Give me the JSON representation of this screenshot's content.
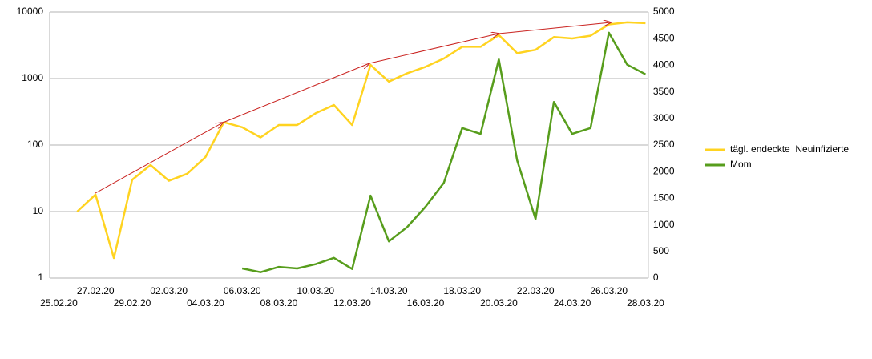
{
  "chart_data": {
    "type": "line",
    "categories": [
      "25.02.20",
      null,
      "27.02.20",
      null,
      "29.02.20",
      null,
      "02.03.20",
      null,
      "04.03.20",
      null,
      "06.03.20",
      null,
      "08.03.20",
      null,
      "10.03.20",
      null,
      "12.03.20",
      null,
      "14.03.20",
      null,
      "16.03.20",
      null,
      "18.03.20",
      null,
      "20.03.20",
      null,
      "22.03.20",
      null,
      "24.03.20",
      null,
      "26.03.20",
      null,
      "28.03.20"
    ],
    "series": [
      {
        "name": "tägl. endeckte  Neuinfizierte",
        "color": "#ffd320",
        "values": [
          null,
          10,
          18,
          2,
          30,
          50,
          29,
          37,
          66,
          220,
          185,
          130,
          200,
          200,
          300,
          400,
          200,
          1600,
          900,
          1200,
          1500,
          2000,
          3000,
          3000,
          4500,
          2400,
          2700,
          4200,
          4000,
          4400,
          6500,
          7000,
          6800
        ]
      },
      {
        "name": "Mom",
        "color": "#579d1c",
        "axis": "y2",
        "values": [
          null,
          null,
          null,
          null,
          null,
          null,
          null,
          null,
          null,
          null,
          180,
          110,
          210,
          180,
          260,
          380,
          170,
          1550,
          690,
          960,
          1340,
          1790,
          2820,
          2710,
          4110,
          2210,
          1110,
          3310,
          2710,
          2820,
          4610,
          4010,
          3830
        ]
      }
    ],
    "ylim": [
      1,
      10000
    ],
    "yticks": [
      1,
      10,
      100,
      1000,
      10000
    ],
    "log_y": true,
    "y2lim": [
      0,
      5000
    ],
    "y2ticks": [
      0,
      500,
      1000,
      1500,
      2000,
      2500,
      3000,
      3500,
      4000,
      4500,
      5000
    ],
    "grid": true,
    "legend": "right"
  }
}
